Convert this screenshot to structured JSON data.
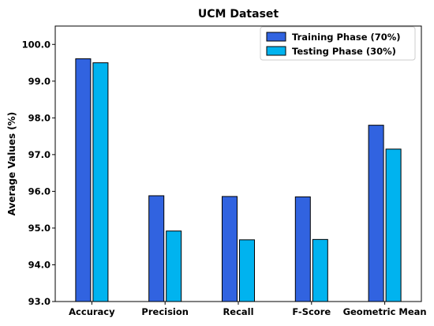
{
  "chart_data": {
    "type": "bar",
    "title": "UCM Dataset",
    "xlabel": "",
    "ylabel": "Average Values (%)",
    "ylim": [
      93.0,
      100.5
    ],
    "yticks": [
      "93.0",
      "94.0",
      "95.0",
      "96.0",
      "97.0",
      "98.0",
      "99.0",
      "100.0"
    ],
    "categories": [
      "Accuracy",
      "Precision",
      "Recall",
      "F-Score",
      "Geometric Mean"
    ],
    "series": [
      {
        "name": "Training Phase (70%)",
        "color": "#3163e0",
        "values": [
          99.61,
          95.88,
          95.86,
          95.85,
          97.8
        ]
      },
      {
        "name": "Testing Phase (30%)",
        "color": "#00b3ef",
        "values": [
          99.5,
          94.92,
          94.68,
          94.69,
          97.15
        ]
      }
    ],
    "legend": "top-right",
    "grid": false
  }
}
